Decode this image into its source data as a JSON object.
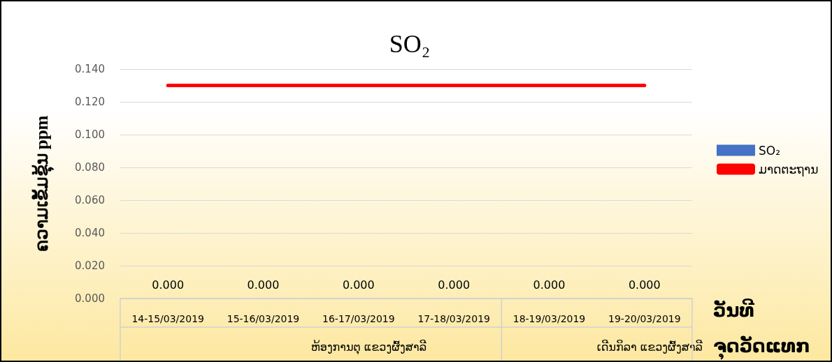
{
  "chart_data": {
    "type": "bar",
    "title": "SO₂",
    "ylabel": "ຄວາມເຂັ້ມຂຸ້ນ ppm",
    "xlabel": "ວັນທີ",
    "categories": [
      "14-15/03/2019",
      "15-16/03/2019",
      "16-17/03/2019",
      "17-18/03/2019",
      "18-19/03/2019",
      "19-20/03/2019"
    ],
    "series": [
      {
        "name": "SO₂",
        "color": "#4472c4",
        "values": [
          0,
          0,
          0,
          0,
          0,
          0
        ],
        "value_labels": [
          "0.000",
          "0.000",
          "0.000",
          "0.000",
          "0.000",
          "0.000"
        ]
      },
      {
        "name": "ມາດຕະຖານ",
        "type": "line",
        "color": "#ff0000",
        "values": [
          0.13,
          0.13,
          0.13,
          0.13,
          0.13,
          0.13
        ]
      }
    ],
    "ylim": [
      0,
      0.14
    ],
    "yticks": [
      {
        "value": 0,
        "label": "0.000"
      },
      {
        "value": 0.02,
        "label": "0.020"
      },
      {
        "value": 0.04,
        "label": "0.040"
      },
      {
        "value": 0.06,
        "label": "0.060"
      },
      {
        "value": 0.08,
        "label": "0.080"
      },
      {
        "value": 0.1,
        "label": "0.100"
      },
      {
        "value": 0.12,
        "label": "0.120"
      },
      {
        "value": 0.14,
        "label": "0.140"
      }
    ],
    "grid": "y",
    "legend": "right",
    "marker": "none",
    "annotations": [
      "ຫ້ອງການຕຸ ແຂວງຜົ້ງສາລີ",
      "ເດີນກິລາ ແຂວງຜົ້ງສາລີ",
      "ຈຸດວັດແທກ"
    ]
  }
}
